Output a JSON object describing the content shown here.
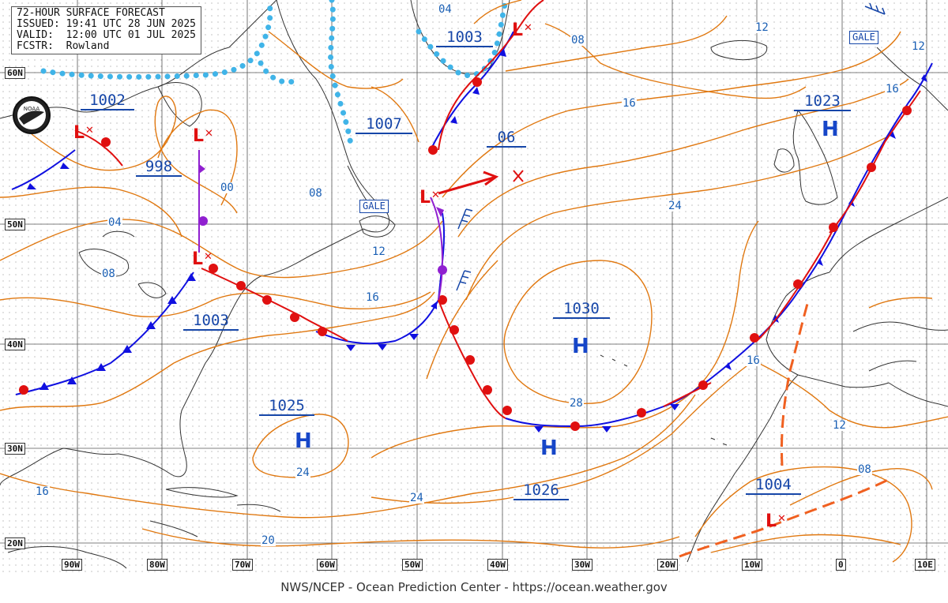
{
  "header": {
    "title": "72-HOUR SURFACE FORECAST",
    "issued": "ISSUED: 19:41 UTC 28 JUN 2025",
    "valid": "VALID:  12:00 UTC 01 JUL 2025",
    "forecaster": "FCSTR:  Rowland"
  },
  "footer": "NWS/NCEP - Ocean Prediction Center - https://ocean.weather.gov",
  "logo": "noaa-logo",
  "latitudes": [
    "60N",
    "50N",
    "40N",
    "30N",
    "20N"
  ],
  "longitudes": [
    "90W",
    "80W",
    "70W",
    "60W",
    "50W",
    "40W",
    "30W",
    "20W",
    "10W",
    "0",
    "10E"
  ],
  "pressure_centers": [
    {
      "label": "1002",
      "type": "low"
    },
    {
      "label": "998",
      "type": "low"
    },
    {
      "label": "1003",
      "type": "low"
    },
    {
      "label": "1007",
      "type": "low"
    },
    {
      "label": "1003",
      "type": "low"
    },
    {
      "label": "06",
      "type": "low"
    },
    {
      "label": "1030",
      "type": "high"
    },
    {
      "label": "1025",
      "type": "high"
    },
    {
      "label": "1026",
      "type": "high"
    },
    {
      "label": "1023",
      "type": "high"
    },
    {
      "label": "1004",
      "type": "low"
    }
  ],
  "high_symbol": "H",
  "low_symbol": "L",
  "isobar_labels": [
    "04",
    "08",
    "08",
    "16",
    "24",
    "12",
    "16",
    "28",
    "24",
    "16",
    "20",
    "24",
    "16",
    "12",
    "08",
    "12",
    "16",
    "00",
    "04",
    "08",
    "12"
  ],
  "warnings": [
    "GALE",
    "GALE"
  ],
  "colors": {
    "isobar": "#e07810",
    "cold_front": "#1010e0",
    "warm_front": "#e01010",
    "occluded_front": "#9020d0",
    "ice_edge": "#40b4e8",
    "trough": "#f06020",
    "coastline": "#333333",
    "grid": "#444444"
  }
}
